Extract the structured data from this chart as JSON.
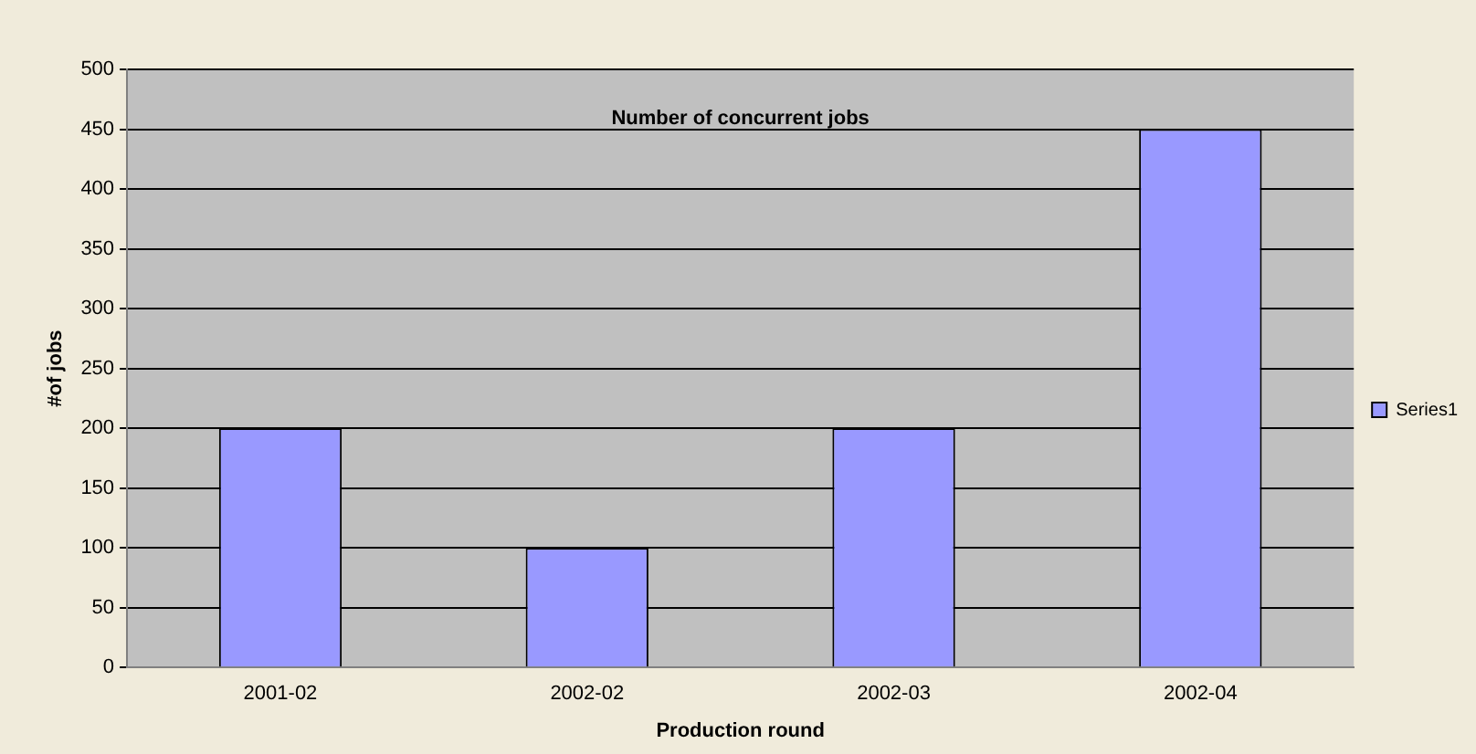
{
  "chart_data": {
    "type": "bar",
    "title": "Number of concurrent jobs",
    "xlabel": "Production round",
    "ylabel": "#of jobs",
    "categories": [
      "2001-02",
      "2002-02",
      "2002-03",
      "2002-04"
    ],
    "series": [
      {
        "name": "Series1",
        "color": "#9999ff",
        "values": [
          200,
          100,
          200,
          450
        ]
      }
    ],
    "ylim": [
      0,
      500
    ],
    "yticks": [
      0,
      50,
      100,
      150,
      200,
      250,
      300,
      350,
      400,
      450,
      500
    ],
    "grid": "y",
    "legend": "right"
  }
}
